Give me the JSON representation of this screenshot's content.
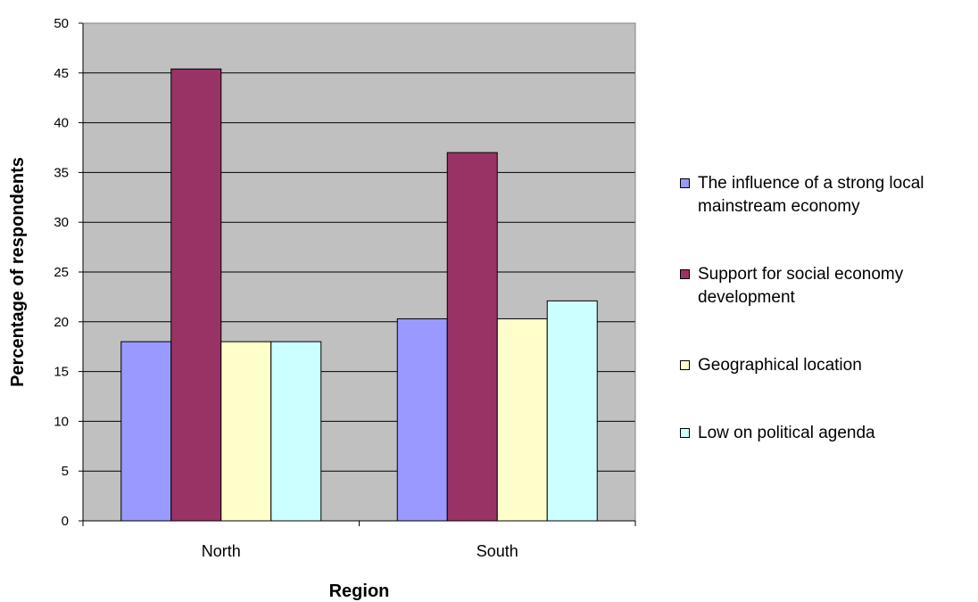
{
  "chart_data": {
    "type": "bar",
    "categories": [
      "North",
      "South"
    ],
    "series": [
      {
        "name": "The influence of a strong local mainstream economy",
        "values": [
          18,
          20.3
        ],
        "color": "#9999ff"
      },
      {
        "name": "Support for social economy development",
        "values": [
          45.4,
          37
        ],
        "color": "#993366"
      },
      {
        "name": "Geographical location",
        "values": [
          18,
          20.3
        ],
        "color": "#ffffcc"
      },
      {
        "name": "Low on political agenda",
        "values": [
          18,
          22.1
        ],
        "color": "#ccffff"
      }
    ],
    "title": "",
    "xlabel": "Region",
    "ylabel": "Percentage of respondents",
    "ylim": [
      0,
      50
    ],
    "yticks": [
      0,
      5,
      10,
      15,
      20,
      25,
      30,
      35,
      40,
      45,
      50
    ],
    "grid": true,
    "plot_background": "#c0c0c0",
    "legend_position": "right"
  }
}
